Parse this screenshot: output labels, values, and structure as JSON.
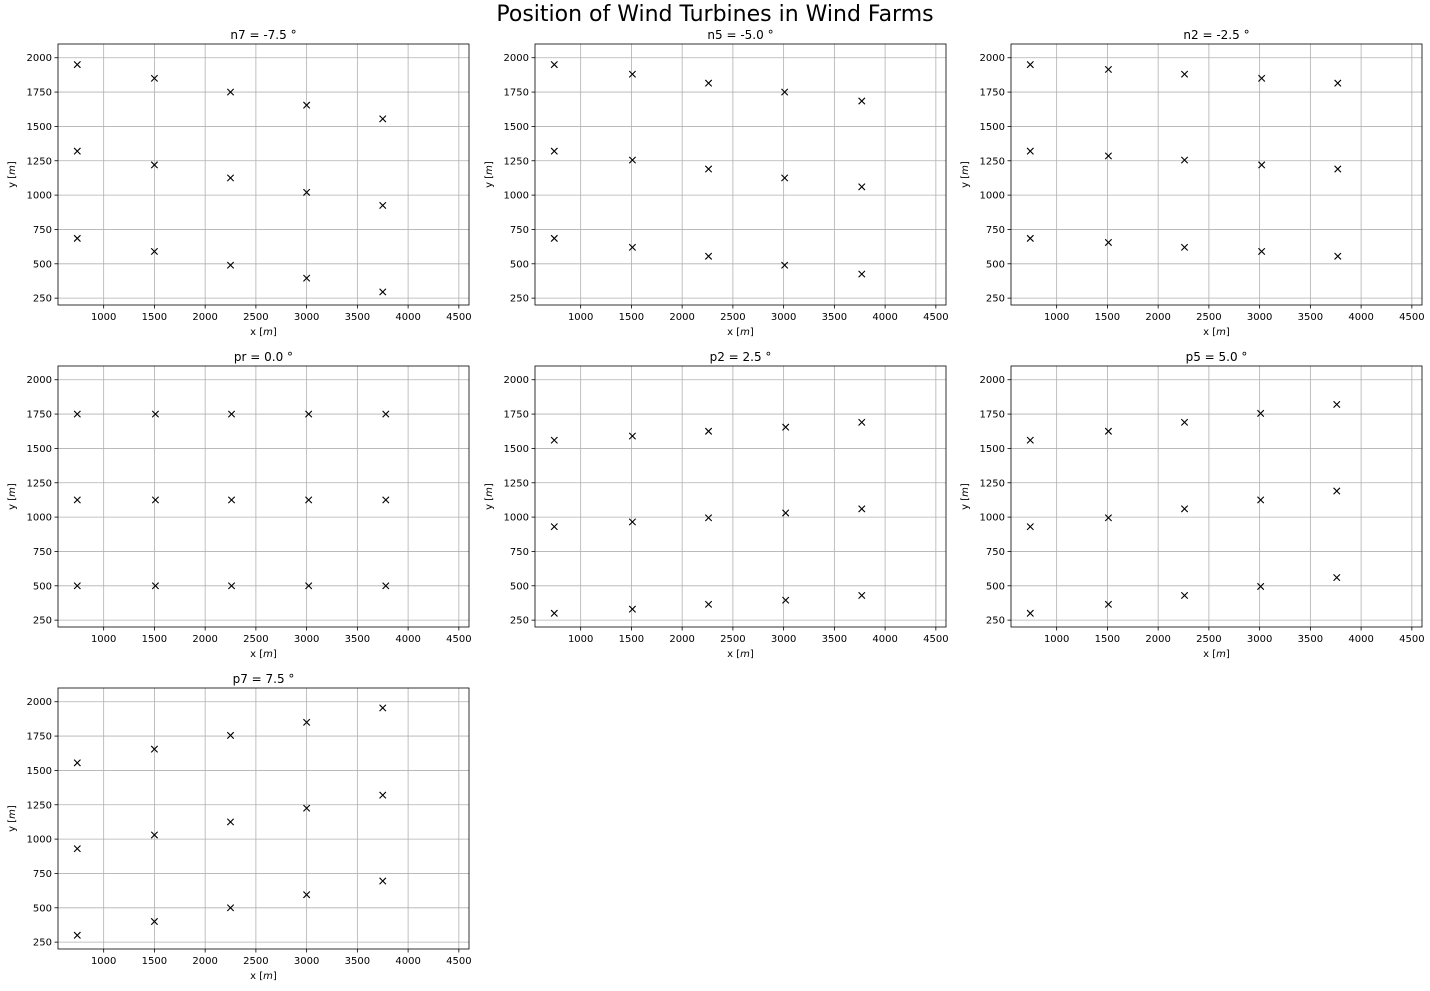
{
  "suptitle": "Position of Wind Turbines in Wind Farms",
  "marker": "×",
  "marker_color": "#000000",
  "grid_color": "#b0b0b0",
  "chart_data": [
    {
      "type": "scatter",
      "title": "n7 = -7.5 °",
      "xlabel": "x [m]",
      "ylabel": "y [m]",
      "xlim": [
        550,
        4600
      ],
      "ylim": [
        200,
        2100
      ],
      "xticks": [
        1000,
        1500,
        2000,
        2500,
        3000,
        3500,
        4000,
        4500
      ],
      "yticks": [
        250,
        500,
        750,
        1000,
        1250,
        1500,
        1750,
        2000
      ],
      "grid": true,
      "points": [
        [
          740,
          1950
        ],
        [
          1500,
          1850
        ],
        [
          2250,
          1750
        ],
        [
          3000,
          1655
        ],
        [
          3750,
          1555
        ],
        [
          740,
          1320
        ],
        [
          1500,
          1220
        ],
        [
          2250,
          1125
        ],
        [
          3000,
          1020
        ],
        [
          3750,
          925
        ],
        [
          740,
          685
        ],
        [
          1500,
          590
        ],
        [
          2250,
          490
        ],
        [
          3000,
          395
        ],
        [
          3750,
          295
        ]
      ]
    },
    {
      "type": "scatter",
      "title": "n5 = -5.0 °",
      "xlabel": "x [m]",
      "ylabel": "y [m]",
      "xlim": [
        550,
        4600
      ],
      "ylim": [
        200,
        2100
      ],
      "xticks": [
        1000,
        1500,
        2000,
        2500,
        3000,
        3500,
        4000,
        4500
      ],
      "yticks": [
        250,
        500,
        750,
        1000,
        1250,
        1500,
        1750,
        2000
      ],
      "grid": true,
      "points": [
        [
          740,
          1950
        ],
        [
          1510,
          1880
        ],
        [
          2260,
          1815
        ],
        [
          3010,
          1750
        ],
        [
          3770,
          1685
        ],
        [
          740,
          1320
        ],
        [
          1510,
          1255
        ],
        [
          2260,
          1190
        ],
        [
          3010,
          1125
        ],
        [
          3770,
          1060
        ],
        [
          740,
          685
        ],
        [
          1510,
          620
        ],
        [
          2260,
          555
        ],
        [
          3010,
          490
        ],
        [
          3770,
          425
        ]
      ]
    },
    {
      "type": "scatter",
      "title": "n2 = -2.5 °",
      "xlabel": "x [m]",
      "ylabel": "y [m]",
      "xlim": [
        550,
        4600
      ],
      "ylim": [
        200,
        2100
      ],
      "xticks": [
        1000,
        1500,
        2000,
        2500,
        3000,
        3500,
        4000,
        4500
      ],
      "yticks": [
        250,
        500,
        750,
        1000,
        1250,
        1500,
        1750,
        2000
      ],
      "grid": true,
      "points": [
        [
          740,
          1950
        ],
        [
          1510,
          1915
        ],
        [
          2260,
          1880
        ],
        [
          3020,
          1850
        ],
        [
          3770,
          1815
        ],
        [
          740,
          1320
        ],
        [
          1510,
          1285
        ],
        [
          2260,
          1255
        ],
        [
          3020,
          1220
        ],
        [
          3770,
          1190
        ],
        [
          740,
          685
        ],
        [
          1510,
          655
        ],
        [
          2260,
          620
        ],
        [
          3020,
          590
        ],
        [
          3770,
          555
        ]
      ]
    },
    {
      "type": "scatter",
      "title": "pr = 0.0 °",
      "xlabel": "x [m]",
      "ylabel": "y [m]",
      "xlim": [
        550,
        4600
      ],
      "ylim": [
        200,
        2100
      ],
      "xticks": [
        1000,
        1500,
        2000,
        2500,
        3000,
        3500,
        4000,
        4500
      ],
      "yticks": [
        250,
        500,
        750,
        1000,
        1250,
        1500,
        1750,
        2000
      ],
      "grid": true,
      "points": [
        [
          740,
          1750
        ],
        [
          1510,
          1750
        ],
        [
          2260,
          1750
        ],
        [
          3020,
          1750
        ],
        [
          3780,
          1750
        ],
        [
          740,
          1125
        ],
        [
          1510,
          1125
        ],
        [
          2260,
          1125
        ],
        [
          3020,
          1125
        ],
        [
          3780,
          1125
        ],
        [
          740,
          500
        ],
        [
          1510,
          500
        ],
        [
          2260,
          500
        ],
        [
          3020,
          500
        ],
        [
          3780,
          500
        ]
      ]
    },
    {
      "type": "scatter",
      "title": "p2 = 2.5 °",
      "xlabel": "x [m]",
      "ylabel": "y [m]",
      "xlim": [
        550,
        4600
      ],
      "ylim": [
        200,
        2100
      ],
      "xticks": [
        1000,
        1500,
        2000,
        2500,
        3000,
        3500,
        4000,
        4500
      ],
      "yticks": [
        250,
        500,
        750,
        1000,
        1250,
        1500,
        1750,
        2000
      ],
      "grid": true,
      "points": [
        [
          740,
          1560
        ],
        [
          1510,
          1590
        ],
        [
          2260,
          1625
        ],
        [
          3020,
          1655
        ],
        [
          3770,
          1690
        ],
        [
          740,
          930
        ],
        [
          1510,
          965
        ],
        [
          2260,
          995
        ],
        [
          3020,
          1030
        ],
        [
          3770,
          1060
        ],
        [
          740,
          300
        ],
        [
          1510,
          330
        ],
        [
          2260,
          365
        ],
        [
          3020,
          395
        ],
        [
          3770,
          430
        ]
      ]
    },
    {
      "type": "scatter",
      "title": "p5 = 5.0 °",
      "xlabel": "x [m]",
      "ylabel": "y [m]",
      "xlim": [
        550,
        4600
      ],
      "ylim": [
        200,
        2100
      ],
      "xticks": [
        1000,
        1500,
        2000,
        2500,
        3000,
        3500,
        4000,
        4500
      ],
      "yticks": [
        250,
        500,
        750,
        1000,
        1250,
        1500,
        1750,
        2000
      ],
      "grid": true,
      "points": [
        [
          740,
          1560
        ],
        [
          1510,
          1625
        ],
        [
          2260,
          1690
        ],
        [
          3010,
          1755
        ],
        [
          3760,
          1820
        ],
        [
          740,
          930
        ],
        [
          1510,
          995
        ],
        [
          2260,
          1060
        ],
        [
          3010,
          1125
        ],
        [
          3760,
          1190
        ],
        [
          740,
          300
        ],
        [
          1510,
          365
        ],
        [
          2260,
          430
        ],
        [
          3010,
          495
        ],
        [
          3760,
          560
        ]
      ]
    },
    {
      "type": "scatter",
      "title": "p7 = 7.5 °",
      "xlabel": "x [m]",
      "ylabel": "y [m]",
      "xlim": [
        550,
        4600
      ],
      "ylim": [
        200,
        2100
      ],
      "xticks": [
        1000,
        1500,
        2000,
        2500,
        3000,
        3500,
        4000,
        4500
      ],
      "yticks": [
        250,
        500,
        750,
        1000,
        1250,
        1500,
        1750,
        2000
      ],
      "grid": true,
      "points": [
        [
          740,
          1555
        ],
        [
          1500,
          1655
        ],
        [
          2250,
          1755
        ],
        [
          3000,
          1850
        ],
        [
          3750,
          1955
        ],
        [
          740,
          930
        ],
        [
          1500,
          1030
        ],
        [
          2250,
          1125
        ],
        [
          3000,
          1225
        ],
        [
          3750,
          1320
        ],
        [
          740,
          300
        ],
        [
          1500,
          400
        ],
        [
          2250,
          500
        ],
        [
          3000,
          595
        ],
        [
          3750,
          695
        ]
      ]
    }
  ]
}
